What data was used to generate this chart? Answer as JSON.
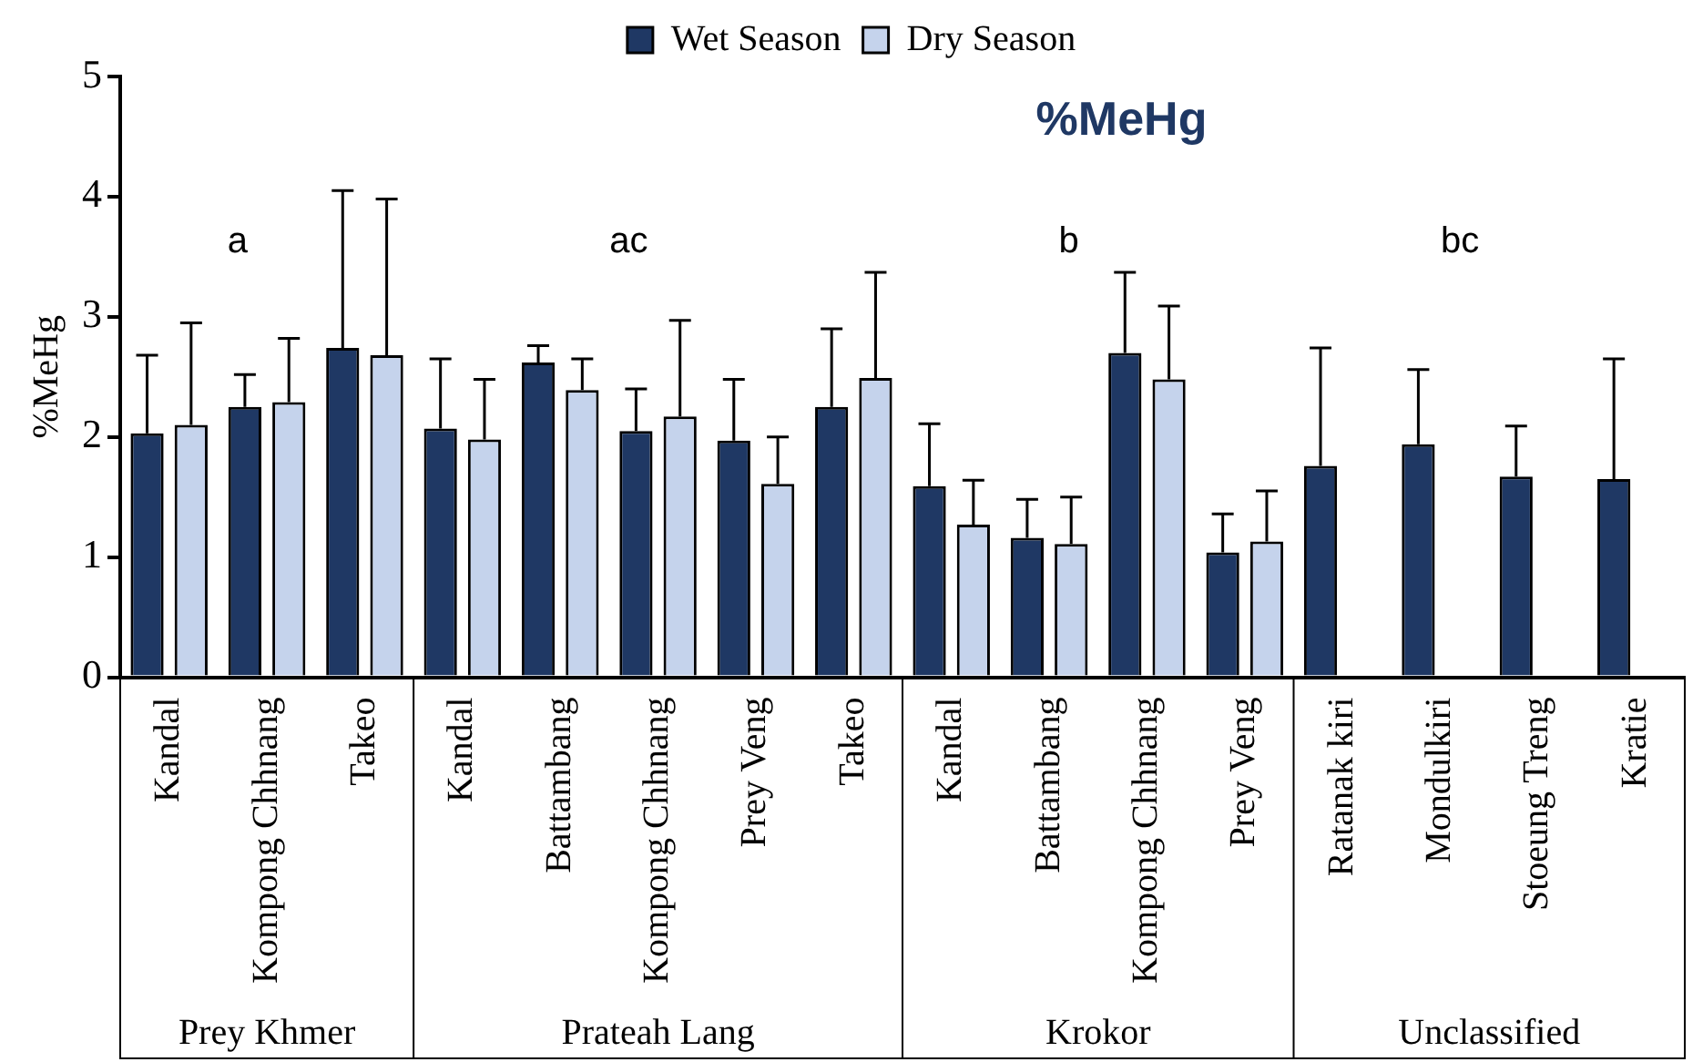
{
  "chart_data": {
    "type": "bar",
    "title": "%MeHg",
    "ylabel": "%MeHg",
    "categories": [
      "Kandal",
      "Kompong Chhnang",
      "Takeo",
      "Kandal",
      "Battambang",
      "Kompong Chhnang",
      "Prey Veng",
      "Takeo",
      "Kandal",
      "Battambang",
      "Kompong Chhnang",
      "Prey Veng",
      "Ratanak kiri",
      "Mondulkiri",
      "Stoeung Treng",
      "Kratie"
    ],
    "series": [
      {
        "name": "Wet Season",
        "color": "#1f3864",
        "values": [
          2.03,
          2.25,
          2.74,
          2.07,
          2.62,
          2.05,
          1.97,
          2.25,
          1.59,
          1.16,
          2.7,
          1.04,
          1.76,
          1.94,
          1.67,
          1.65
        ],
        "errors": [
          [
            2.03,
            2.68
          ],
          [
            2.25,
            2.52
          ],
          [
            2.74,
            4.05
          ],
          [
            2.07,
            2.65
          ],
          [
            2.62,
            2.76
          ],
          [
            2.05,
            2.4
          ],
          [
            1.97,
            2.48
          ],
          [
            2.25,
            2.9
          ],
          [
            1.59,
            2.11
          ],
          [
            1.16,
            1.48
          ],
          [
            2.7,
            3.37
          ],
          [
            1.04,
            1.36
          ],
          [
            1.76,
            2.74
          ],
          [
            1.94,
            2.56
          ],
          [
            1.67,
            2.09
          ],
          [
            1.65,
            2.65
          ]
        ]
      },
      {
        "name": "Dry Season",
        "color": "#c5d3ec",
        "values": [
          2.1,
          2.29,
          2.68,
          1.98,
          2.39,
          2.17,
          1.61,
          2.49,
          1.27,
          1.11,
          2.48,
          1.13,
          null,
          null,
          null,
          null
        ],
        "errors": [
          [
            2.1,
            2.95
          ],
          [
            2.29,
            2.82
          ],
          [
            2.68,
            3.98
          ],
          [
            1.98,
            2.48
          ],
          [
            2.39,
            2.65
          ],
          [
            2.17,
            2.97
          ],
          [
            1.61,
            2.0
          ],
          [
            2.49,
            3.37
          ],
          [
            1.27,
            1.64
          ],
          [
            1.11,
            1.5
          ],
          [
            2.48,
            3.09
          ],
          [
            1.13,
            1.55
          ],
          null,
          null,
          null,
          null
        ]
      }
    ],
    "ylim": [
      0,
      5
    ],
    "yticks": [
      0,
      1,
      2,
      3,
      4,
      5
    ],
    "grid": false,
    "legend": "top",
    "annotations": [
      "a",
      "ac",
      "b",
      "bc",
      "Prey Khmer",
      "Prateah Lang",
      "Krokor",
      "Unclassified"
    ]
  }
}
